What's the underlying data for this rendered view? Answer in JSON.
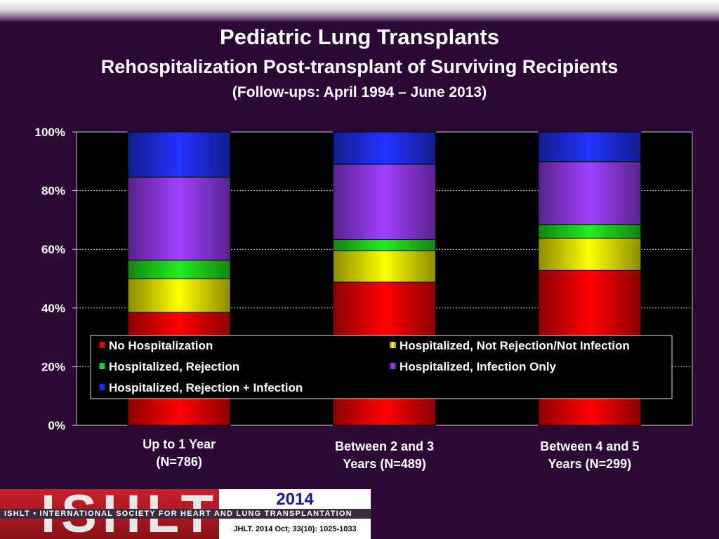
{
  "titles": {
    "main": "Pediatric Lung Transplants",
    "sub": "Rehospitalization Post-transplant of Surviving Recipients",
    "range": "(Follow-ups: April 1994 – June 2013)"
  },
  "chart_data": {
    "type": "bar",
    "stacked": true,
    "categories": [
      [
        "Up to 1 Year",
        "(N=786)"
      ],
      [
        "Between 2 and 3",
        "Years (N=489)"
      ],
      [
        "Between 4 and 5",
        "Years (N=299)"
      ]
    ],
    "series": [
      {
        "name": "No Hospitalization",
        "color": "#ff0000",
        "values": [
          38.5,
          48.8,
          52.8
        ]
      },
      {
        "name": "Hospitalized, Not Rejection/Not Infection",
        "color": "#ffff00",
        "values": [
          11.5,
          10.7,
          11.0
        ]
      },
      {
        "name": "Hospitalized, Rejection",
        "color": "#22ee22",
        "values": [
          6.3,
          3.8,
          4.7
        ]
      },
      {
        "name": "Hospitalized, Infection Only",
        "color": "#a040ff",
        "values": [
          28.3,
          25.7,
          21.3
        ]
      },
      {
        "name": "Hospitalized, Rejection + Infection",
        "color": "#2233ff",
        "values": [
          15.4,
          11.0,
          10.2
        ]
      }
    ],
    "ylim": [
      0,
      100
    ],
    "yticks": [
      "0%",
      "20%",
      "40%",
      "60%",
      "80%",
      "100%"
    ],
    "ytick_values": [
      0,
      20,
      40,
      60,
      80,
      100
    ],
    "grid": true,
    "legend_position": "bottom-center-inside"
  },
  "footer": {
    "logo_text": "ISHLT",
    "tagline": "ISHLT • INTERNATIONAL SOCIETY FOR HEART AND LUNG TRANSPLANTATION",
    "year": "2014",
    "citation": "JHLT. 2014 Oct; 33(10): 1025-1033"
  }
}
